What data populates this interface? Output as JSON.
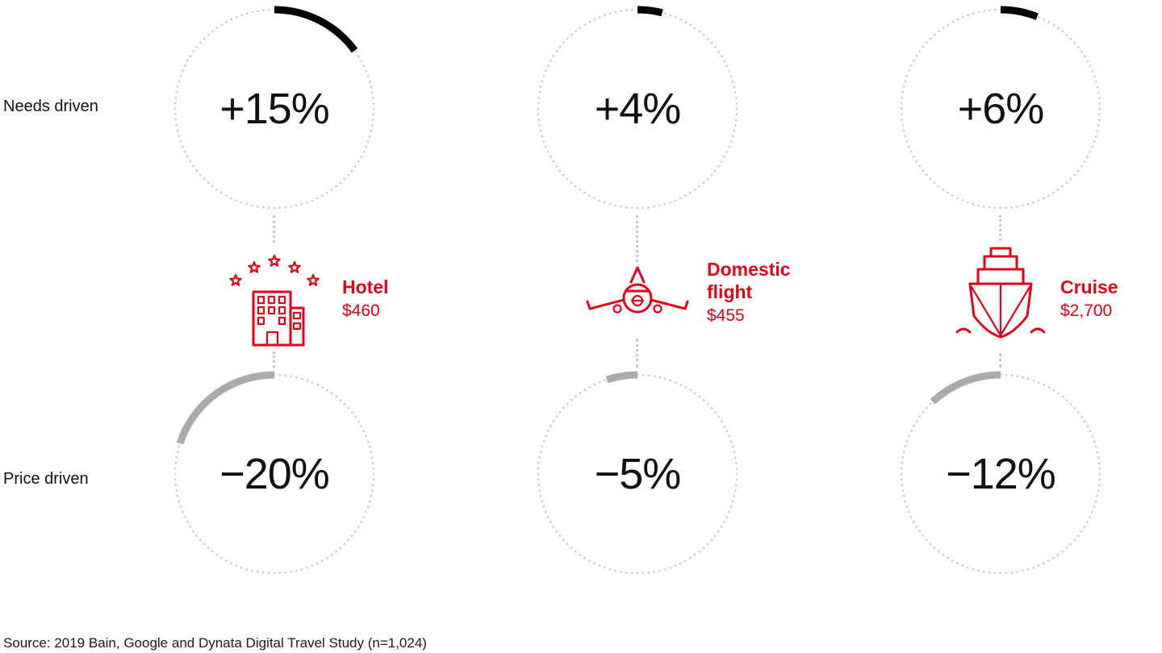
{
  "row_labels": {
    "needs": "Needs driven",
    "price": "Price driven"
  },
  "source": "Source: 2019 Bain, Google and Dynata Digital Travel Study (n=1,024)",
  "columns": [
    {
      "name": "Hotel",
      "price": "$460",
      "needs_pct": "+15%",
      "needs_value": 15,
      "price_pct": "−20%",
      "price_value": -20
    },
    {
      "name": "Domestic flight",
      "price": "$455",
      "needs_pct": "+4%",
      "needs_value": 4,
      "price_pct": "−5%",
      "price_value": -5
    },
    {
      "name": "Cruise",
      "price": "$2,700",
      "needs_pct": "+6%",
      "needs_value": 6,
      "price_pct": "−12%",
      "price_value": -12
    }
  ],
  "colors": {
    "accent_red": "#e0001b",
    "needs_arc": "#000000",
    "price_arc": "#ababab",
    "dotted_circle": "#c9c9c9"
  },
  "chart_data": {
    "type": "gauge",
    "categories": [
      "Hotel",
      "Domestic flight",
      "Cruise"
    ],
    "series": [
      {
        "name": "Needs driven",
        "values": [
          15,
          4,
          6
        ]
      },
      {
        "name": "Price driven",
        "values": [
          -20,
          -5,
          -12
        ]
      }
    ],
    "item_prices": [
      "$460",
      "$455",
      "$2,700"
    ],
    "units": "percent change",
    "arc_start": "12 o'clock, positive clockwise, negative counterclockwise",
    "title": "",
    "source": "Source: 2019 Bain, Google and Dynata Digital Travel Study (n=1,024)"
  }
}
